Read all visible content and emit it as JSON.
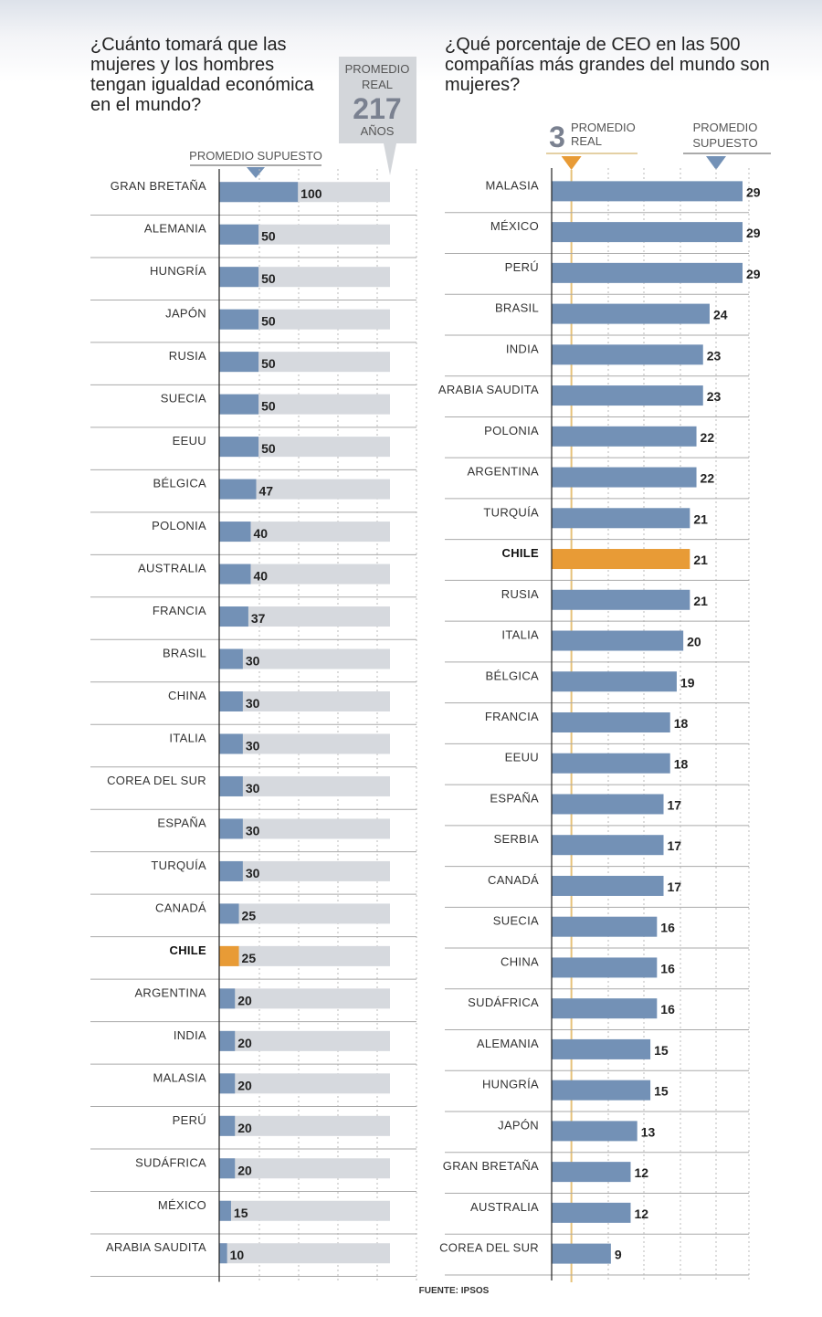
{
  "source": "FUENTE: IPSOS",
  "colors": {
    "bar": "#7391b6",
    "highlight": "#e89b36",
    "track": "#d6d9de",
    "box": "#d3d6da",
    "line": "#555555"
  },
  "chart_data": [
    {
      "type": "bar",
      "title": "¿Cuánto tomará que las mujeres y los hombres tengan igualdad económica en el mundo?",
      "orientation": "horizontal",
      "highlight": "CHILE",
      "annotations": {
        "assumed_label": "PROMEDIO SUPUESTO",
        "real_label_1": "PROMEDIO",
        "real_label_2": "REAL",
        "real_value": 217,
        "real_unit": "AÑOS"
      },
      "xlim": [
        0,
        217
      ],
      "categories": [
        "GRAN BRETAÑA",
        "ALEMANIA",
        "HUNGRÍA",
        "JAPÓN",
        "RUSIA",
        "SUECIA",
        "EEUU",
        "BÉLGICA",
        "POLONIA",
        "AUSTRALIA",
        "FRANCIA",
        "BRASIL",
        "CHINA",
        "ITALIA",
        "COREA DEL SUR",
        "ESPAÑA",
        "TURQUÍA",
        "CANADÁ",
        "CHILE",
        "ARGENTINA",
        "INDIA",
        "MALASIA",
        "PERÚ",
        "SUDÁFRICA",
        "MÉXICO",
        "ARABIA SAUDITA"
      ],
      "values": [
        100,
        50,
        50,
        50,
        50,
        50,
        50,
        47,
        40,
        40,
        37,
        30,
        30,
        30,
        30,
        30,
        30,
        25,
        25,
        20,
        20,
        20,
        20,
        20,
        15,
        10
      ]
    },
    {
      "type": "bar",
      "title": "¿Qué porcentaje de CEO en las 500 compañías más grandes del mundo son mujeres?",
      "orientation": "horizontal",
      "highlight": "CHILE",
      "annotations": {
        "real_value": 3,
        "real_label_1": "PROMEDIO",
        "real_label_2": "REAL",
        "assumed_label_1": "PROMEDIO",
        "assumed_label_2": "SUPUESTO"
      },
      "xlim": [
        0,
        29
      ],
      "categories": [
        "MALASIA",
        "MÉXICO",
        "PERÚ",
        "BRASIL",
        "INDIA",
        "ARABIA SAUDITA",
        "POLONIA",
        "ARGENTINA",
        "TURQUÍA",
        "CHILE",
        "RUSIA",
        "ITALIA",
        "BÉLGICA",
        "FRANCIA",
        "EEUU",
        "ESPAÑA",
        "SERBIA",
        "CANADÁ",
        "SUECIA",
        "CHINA",
        "SUDÁFRICA",
        "ALEMANIA",
        "HUNGRÍA",
        "JAPÓN",
        "GRAN BRETAÑA",
        "AUSTRALIA",
        "COREA DEL SUR"
      ],
      "values": [
        29,
        29,
        29,
        24,
        23,
        23,
        22,
        22,
        21,
        21,
        21,
        20,
        19,
        18,
        18,
        17,
        17,
        17,
        16,
        16,
        16,
        15,
        15,
        13,
        12,
        12,
        9
      ]
    }
  ]
}
